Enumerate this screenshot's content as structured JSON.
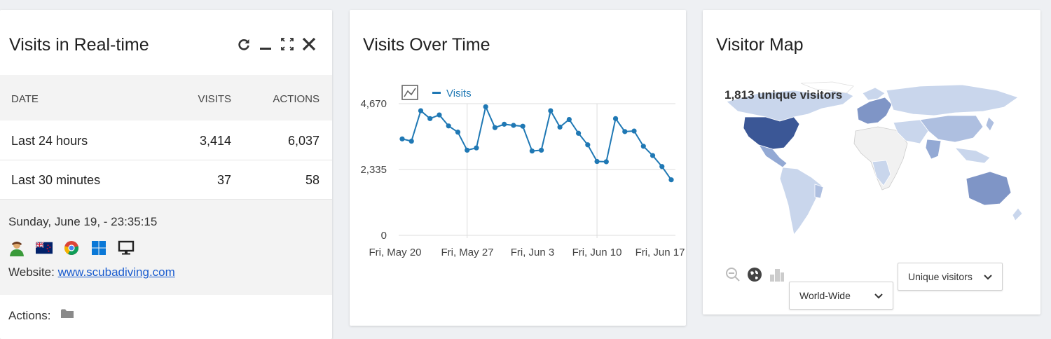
{
  "realtime": {
    "title": "Visits in Real-time",
    "columns": [
      "DATE",
      "VISITS",
      "ACTIONS"
    ],
    "rows": [
      {
        "date": "Last 24 hours",
        "visits": "3,414",
        "actions": "6,037"
      },
      {
        "date": "Last 30 minutes",
        "visits": "37",
        "actions": "58"
      }
    ],
    "visit_time": "Sunday, June 19, - 23:35:15",
    "visitor_icons": [
      "visitor-profile-icon",
      "new-zealand-flag-icon",
      "chrome-icon",
      "windows-icon",
      "desktop-icon"
    ],
    "website_label": "Website:",
    "website": "www.scubadiving.com",
    "actions_label": "Actions:"
  },
  "visits_over_time": {
    "title": "Visits Over Time",
    "legend_label": "Visits"
  },
  "visitor_map": {
    "title": "Visitor Map",
    "caption": "1,813 unique visitors",
    "metric_select": "Unique visitors",
    "region_select": "World-Wide"
  },
  "chart_data": {
    "type": "line",
    "title": "",
    "series": [
      {
        "name": "Visits",
        "values": [
          3420,
          3340,
          4420,
          4140,
          4270,
          3880,
          3660,
          3020,
          3100,
          4560,
          3820,
          3940,
          3900,
          3870,
          2990,
          3020,
          4420,
          3840,
          4110,
          3620,
          3210,
          2620,
          2610,
          4140,
          3680,
          3700,
          3160,
          2830,
          2440,
          1970
        ]
      }
    ],
    "x_ticks": [
      "Fri, May 20",
      "Fri, May 27",
      "Fri, Jun 3",
      "Fri, Jun 10",
      "Fri, Jun 17"
    ],
    "y_ticks": [
      "0",
      "2,335",
      "4,670"
    ],
    "ylim": [
      0,
      4670
    ],
    "color": "#1f78b4",
    "grid": true
  }
}
